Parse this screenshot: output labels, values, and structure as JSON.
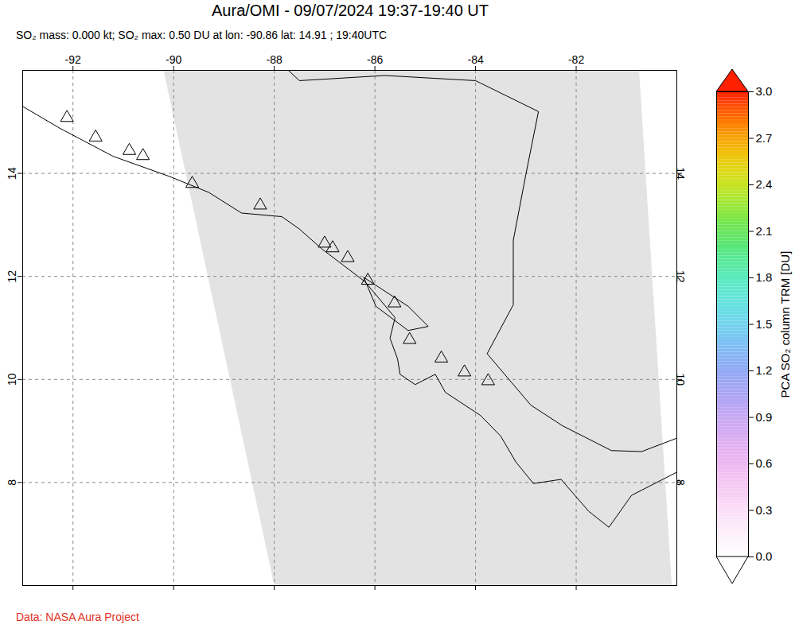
{
  "chart_data": {
    "type": "map",
    "title": "Aura/OMI - 09/07/2024 19:37-19:40 UT",
    "subtitle": "SO₂ mass: 0.000 kt; SO₂ max: 0.50 DU at lon: -90.86 lat: 14.91 ; 19:40UTC",
    "caption": "Data: NASA Aura Project",
    "xlim": [
      -93,
      -80
    ],
    "ylim": [
      6,
      16
    ],
    "xticks": [
      -92,
      -90,
      -88,
      -86,
      -84,
      -82
    ],
    "yticks": [
      8,
      10,
      12,
      14
    ],
    "grid": true,
    "swath": [
      [
        -90.2,
        16
      ],
      [
        -80.75,
        16
      ],
      [
        -80.1,
        6
      ],
      [
        -88,
        6
      ]
    ],
    "coastlines": [
      [
        [
          -93,
          15.3
        ],
        [
          -92.25,
          14.87
        ],
        [
          -91.2,
          14.33
        ],
        [
          -90.08,
          13.94
        ],
        [
          -89.3,
          13.63
        ],
        [
          -88.65,
          13.23
        ],
        [
          -87.85,
          13.16
        ],
        [
          -87.5,
          12.92
        ],
        [
          -87.05,
          12.53
        ],
        [
          -86.2,
          11.9
        ],
        [
          -85.6,
          11.2
        ],
        [
          -85.7,
          10.8
        ],
        [
          -85.55,
          10.4
        ],
        [
          -85.5,
          10.1
        ],
        [
          -85.2,
          9.9
        ],
        [
          -84.8,
          10.1
        ],
        [
          -84.6,
          9.75
        ],
        [
          -83.9,
          9.3
        ],
        [
          -83.5,
          8.9
        ],
        [
          -83.2,
          8.4
        ],
        [
          -82.85,
          7.98
        ],
        [
          -82.3,
          8.06
        ],
        [
          -81.75,
          7.44
        ],
        [
          -81.35,
          7.13
        ],
        [
          -80.9,
          7.75
        ],
        [
          -80,
          8.2
        ]
      ],
      [
        [
          -87.72,
          16
        ],
        [
          -87.5,
          15.8
        ],
        [
          -85.8,
          15.9
        ],
        [
          -84.0,
          15.8
        ],
        [
          -82.75,
          15.2
        ],
        [
          -83.0,
          13.98
        ],
        [
          -83.25,
          12.7
        ],
        [
          -83.25,
          11.45
        ],
        [
          -83.77,
          10.5
        ],
        [
          -82.9,
          9.5
        ],
        [
          -82.27,
          9.1
        ],
        [
          -81.3,
          8.62
        ],
        [
          -80.7,
          8.6
        ],
        [
          -80,
          8.86
        ]
      ],
      [
        [
          -86.22,
          11.98
        ],
        [
          -85.34,
          11.42
        ],
        [
          -84.94,
          11.03
        ],
        [
          -85.34,
          10.95
        ],
        [
          -85.98,
          11.42
        ],
        [
          -86.22,
          11.98
        ]
      ]
    ],
    "volcanoes": {
      "marker": "triangle",
      "lon": [
        -92.12,
        -91.55,
        -90.88,
        -90.61,
        -89.63,
        -88.28,
        -87.0,
        -86.84,
        -86.54,
        -86.14,
        -85.61,
        -85.31,
        -84.68,
        -84.22,
        -83.75
      ],
      "lat": [
        15.08,
        14.7,
        14.44,
        14.34,
        13.8,
        13.38,
        12.64,
        12.55,
        12.36,
        11.92,
        11.48,
        10.77,
        10.41,
        10.14,
        9.97
      ]
    },
    "colorbar": {
      "label": "PCA SO₂ column TRM [DU]",
      "range": [
        0,
        3
      ],
      "ticks": [
        {
          "value": 0,
          "label": "0.0"
        },
        {
          "value": 0.3,
          "label": "0.3"
        },
        {
          "value": 0.6,
          "label": "0.6"
        },
        {
          "value": 0.9,
          "label": "0.9"
        },
        {
          "value": 1.2,
          "label": "1.2"
        },
        {
          "value": 1.5,
          "label": "1.5"
        },
        {
          "value": 1.8,
          "label": "1.8"
        },
        {
          "value": 2.1,
          "label": "2.1"
        },
        {
          "value": 2.4,
          "label": "2.4"
        },
        {
          "value": 2.7,
          "label": "2.7"
        },
        {
          "value": 3,
          "label": "3.0"
        }
      ],
      "colors": [
        "#ffffff",
        "#fbe0f8",
        "#f3b4f0",
        "#c8a8f4",
        "#8fa0f6",
        "#70d8f4",
        "#5af0c8",
        "#50e050",
        "#d8f020",
        "#ffb000",
        "#ff2000"
      ]
    }
  }
}
